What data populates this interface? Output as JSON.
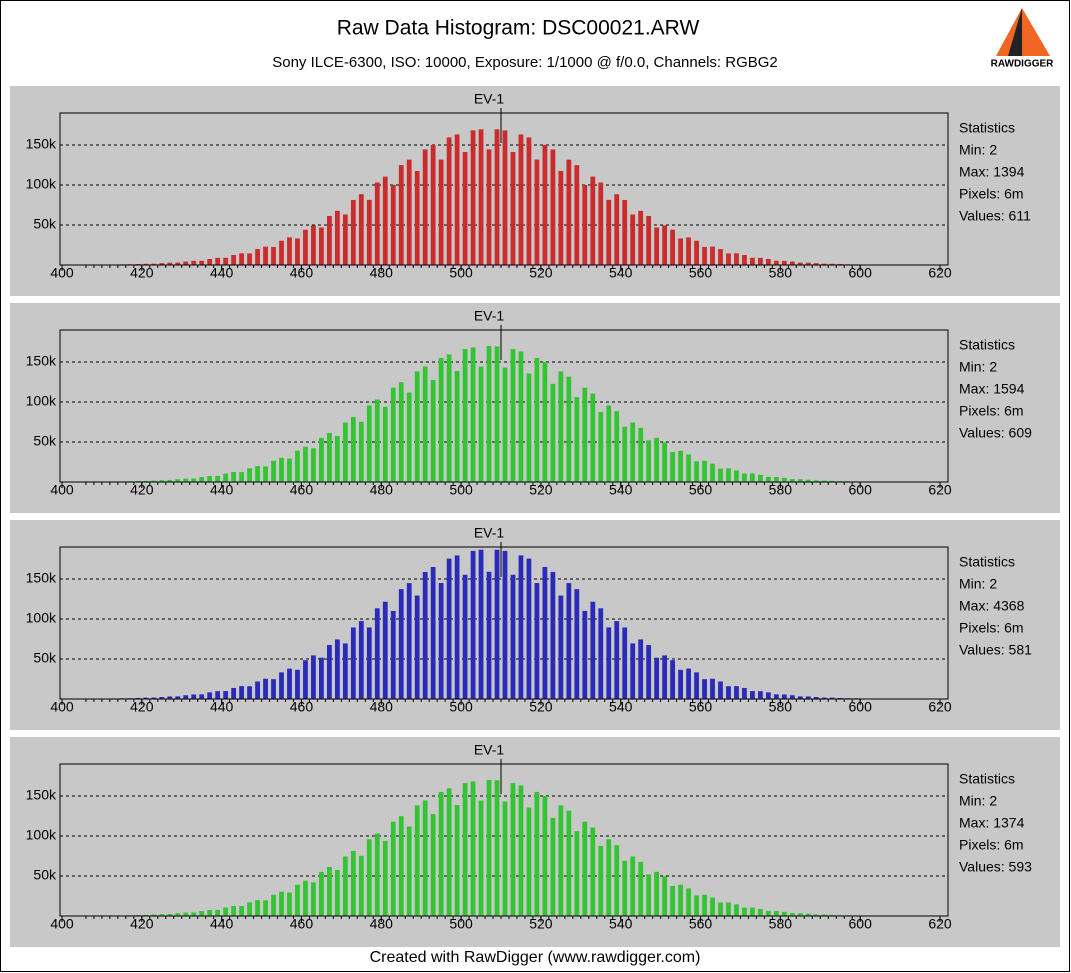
{
  "header": {
    "title": "Raw Data Histogram: DSC00021.ARW",
    "subtitle": "Sony ILCE-6300, ISO: 10000, Exposure: 1/1000 @ f/0.0, Channels: RGBG2",
    "logo": "RAWDIGGER"
  },
  "footer": "Created with RawDigger (www.rawdigger.com)",
  "chart_data": [
    {
      "type": "histogram",
      "color": "#cc2b2b",
      "marker": {
        "label": "EV-1",
        "value": 510
      },
      "statistics": [
        "Statistics",
        "Min: 2",
        "Max: 1394",
        "Pixels: 6m",
        "Values: 611"
      ],
      "xlim": [
        400,
        620
      ],
      "xticks": [
        400,
        420,
        440,
        460,
        480,
        500,
        520,
        540,
        560,
        580,
        600,
        620
      ],
      "ylim": [
        0,
        190000
      ],
      "yticks": [
        {
          "value": 50000,
          "label": "50k"
        },
        {
          "value": 100000,
          "label": "100k"
        },
        {
          "value": 150000,
          "label": "150k"
        }
      ],
      "grid": true,
      "bins": [
        406,
        408,
        410,
        412,
        414,
        416,
        418,
        420,
        422,
        424,
        426,
        428,
        430,
        432,
        434,
        436,
        438,
        440,
        442,
        444,
        446,
        448,
        450,
        452,
        454,
        456,
        458,
        460,
        462,
        464,
        466,
        468,
        470,
        472,
        474,
        476,
        478,
        480,
        482,
        484,
        486,
        488,
        490,
        492,
        494,
        496,
        498,
        500,
        502,
        504,
        506,
        508,
        510,
        512,
        514,
        516,
        518,
        520,
        522,
        524,
        526,
        528,
        530,
        532,
        534,
        536,
        538,
        540,
        542,
        544,
        546,
        548,
        550,
        552,
        554,
        556,
        558,
        560,
        562,
        564,
        566,
        568,
        570,
        572,
        574,
        576,
        578,
        580,
        582,
        584,
        586,
        588,
        590,
        592,
        594,
        596,
        598,
        600
      ],
      "values": [
        300,
        400,
        400,
        600,
        800,
        900,
        1200,
        1500,
        1600,
        2300,
        2900,
        3000,
        4300,
        5200,
        5300,
        7500,
        8900,
        9000,
        12500,
        14600,
        14500,
        19900,
        23000,
        22500,
        30300,
        34500,
        33200,
        44100,
        49500,
        46900,
        61300,
        67700,
        63200,
        81300,
        88500,
        81400,
        103100,
        110500,
        100100,
        124800,
        131700,
        117500,
        144400,
        150000,
        131800,
        159500,
        163200,
        141200,
        168300,
        169600,
        144500,
        169600,
        168300,
        141200,
        163200,
        159500,
        131800,
        150000,
        144400,
        117500,
        131700,
        124800,
        100100,
        110500,
        103100,
        81400,
        88500,
        81300,
        63200,
        67700,
        61300,
        46900,
        49500,
        44100,
        33200,
        34500,
        30300,
        22500,
        23000,
        19900,
        14500,
        14600,
        12500,
        9000,
        8900,
        7500,
        5300,
        5200,
        4300,
        3000,
        2900,
        2300,
        1600,
        1500,
        1200,
        900,
        800
      ]
    },
    {
      "type": "histogram",
      "color": "#33c433",
      "marker": {
        "label": "EV-1",
        "value": 510
      },
      "statistics": [
        "Statistics",
        "Min: 2",
        "Max: 1594",
        "Pixels: 6m",
        "Values: 609"
      ],
      "xlim": [
        400,
        620
      ],
      "xticks": [
        400,
        420,
        440,
        460,
        480,
        500,
        520,
        540,
        560,
        580,
        600,
        620
      ],
      "ylim": [
        0,
        190000
      ],
      "yticks": [
        {
          "value": 50000,
          "label": "50k"
        },
        {
          "value": 100000,
          "label": "100k"
        },
        {
          "value": 150000,
          "label": "150k"
        }
      ],
      "grid": true,
      "bins": [
        406,
        408,
        410,
        412,
        414,
        416,
        418,
        420,
        422,
        424,
        426,
        428,
        430,
        432,
        434,
        436,
        438,
        440,
        442,
        444,
        446,
        448,
        450,
        452,
        454,
        456,
        458,
        460,
        462,
        464,
        466,
        468,
        470,
        472,
        474,
        476,
        478,
        480,
        482,
        484,
        486,
        488,
        490,
        492,
        494,
        496,
        498,
        500,
        502,
        504,
        506,
        508,
        510,
        512,
        514,
        516,
        518,
        520,
        522,
        524,
        526,
        528,
        530,
        532,
        534,
        536,
        538,
        540,
        542,
        544,
        546,
        548,
        550,
        552,
        554,
        556,
        558,
        560,
        562,
        564,
        566,
        568,
        570,
        572,
        574,
        576,
        578,
        580,
        582,
        584,
        586,
        588,
        590,
        592,
        594,
        596,
        598,
        600
      ],
      "values": [
        300,
        300,
        500,
        600,
        700,
        1000,
        1200,
        1300,
        1900,
        2300,
        2500,
        3500,
        4300,
        4400,
        6200,
        7500,
        7600,
        10600,
        12500,
        12400,
        17100,
        19900,
        19600,
        26500,
        30300,
        29300,
        39100,
        44100,
        42100,
        55200,
        61300,
        57500,
        74400,
        81300,
        75200,
        95800,
        103100,
        93900,
        117800,
        124800,
        111900,
        138200,
        144400,
        127500,
        155100,
        159500,
        138700,
        166100,
        168300,
        144200,
        170000,
        169600,
        143100,
        166100,
        163200,
        135600,
        155100,
        150000,
        122700,
        138200,
        131700,
        106100,
        117800,
        110500,
        87600,
        95800,
        88500,
        69100,
        74400,
        67700,
        52100,
        55200,
        49500,
        37500,
        39100,
        34500,
        25800,
        26500,
        23000,
        16900,
        17100,
        14600,
        10600,
        10600,
        8900,
        6400,
        6200,
        5200,
        3700,
        3500,
        2900,
        2000,
        1900,
        1500,
        1000,
        1000,
        800
      ]
    },
    {
      "type": "histogram",
      "color": "#2b2bbb",
      "marker": {
        "label": "EV-1",
        "value": 510
      },
      "statistics": [
        "Statistics",
        "Min: 2",
        "Max: 4368",
        "Pixels: 6m",
        "Values: 581"
      ],
      "xlim": [
        400,
        620
      ],
      "xticks": [
        400,
        420,
        440,
        460,
        480,
        500,
        520,
        540,
        560,
        580,
        600,
        620
      ],
      "ylim": [
        0,
        190000
      ],
      "yticks": [
        {
          "value": 50000,
          "label": "50k"
        },
        {
          "value": 100000,
          "label": "100k"
        },
        {
          "value": 150000,
          "label": "150k"
        }
      ],
      "grid": true,
      "bins": [
        406,
        408,
        410,
        412,
        414,
        416,
        418,
        420,
        422,
        424,
        426,
        428,
        430,
        432,
        434,
        436,
        438,
        440,
        442,
        444,
        446,
        448,
        450,
        452,
        454,
        456,
        458,
        460,
        462,
        464,
        466,
        468,
        470,
        472,
        474,
        476,
        478,
        480,
        482,
        484,
        486,
        488,
        490,
        492,
        494,
        496,
        498,
        500,
        502,
        504,
        506,
        508,
        510,
        512,
        514,
        516,
        518,
        520,
        522,
        524,
        526,
        528,
        530,
        532,
        534,
        536,
        538,
        540,
        542,
        544,
        546,
        548,
        550,
        552,
        554,
        556,
        558,
        560,
        562,
        564,
        566,
        568,
        570,
        572,
        574,
        576,
        578,
        580,
        582,
        584,
        586,
        588,
        590,
        592,
        594,
        596,
        598,
        600
      ],
      "values": [
        300,
        400,
        400,
        700,
        900,
        1000,
        1300,
        1700,
        1800,
        2500,
        3200,
        3300,
        4700,
        5700,
        5800,
        8300,
        9800,
        9900,
        13800,
        16100,
        16000,
        21900,
        25300,
        24800,
        33300,
        38000,
        36500,
        48500,
        54500,
        51600,
        67400,
        74500,
        69500,
        89400,
        97400,
        89500,
        113400,
        121600,
        110100,
        137300,
        144900,
        129300,
        158800,
        165000,
        145000,
        175500,
        179500,
        155300,
        185100,
        186600,
        159000,
        186600,
        185100,
        155300,
        179500,
        175500,
        145000,
        165000,
        158800,
        129300,
        144900,
        137300,
        110100,
        121600,
        113400,
        89500,
        97400,
        89400,
        69500,
        74500,
        67400,
        51600,
        54500,
        48500,
        36500,
        38000,
        33300,
        24800,
        25300,
        21900,
        16000,
        16100,
        13800,
        9900,
        9800,
        8300,
        5800,
        5700,
        4700,
        3300,
        3200,
        2500,
        1800,
        1700,
        1300,
        1000,
        900
      ]
    },
    {
      "type": "histogram",
      "color": "#33c433",
      "marker": {
        "label": "EV-1",
        "value": 510
      },
      "statistics": [
        "Statistics",
        "Min: 2",
        "Max: 1374",
        "Pixels: 6m",
        "Values: 593"
      ],
      "xlim": [
        400,
        620
      ],
      "xticks": [
        400,
        420,
        440,
        460,
        480,
        500,
        520,
        540,
        560,
        580,
        600,
        620
      ],
      "ylim": [
        0,
        190000
      ],
      "yticks": [
        {
          "value": 50000,
          "label": "50k"
        },
        {
          "value": 100000,
          "label": "100k"
        },
        {
          "value": 150000,
          "label": "150k"
        }
      ],
      "grid": true,
      "bins": [
        406,
        408,
        410,
        412,
        414,
        416,
        418,
        420,
        422,
        424,
        426,
        428,
        430,
        432,
        434,
        436,
        438,
        440,
        442,
        444,
        446,
        448,
        450,
        452,
        454,
        456,
        458,
        460,
        462,
        464,
        466,
        468,
        470,
        472,
        474,
        476,
        478,
        480,
        482,
        484,
        486,
        488,
        490,
        492,
        494,
        496,
        498,
        500,
        502,
        504,
        506,
        508,
        510,
        512,
        514,
        516,
        518,
        520,
        522,
        524,
        526,
        528,
        530,
        532,
        534,
        536,
        538,
        540,
        542,
        544,
        546,
        548,
        550,
        552,
        554,
        556,
        558,
        560,
        562,
        564,
        566,
        568,
        570,
        572,
        574,
        576,
        578,
        580,
        582,
        584,
        586,
        588,
        590,
        592,
        594,
        596,
        598,
        600
      ],
      "values": [
        300,
        300,
        500,
        600,
        700,
        1000,
        1200,
        1300,
        1900,
        2300,
        2500,
        3500,
        4300,
        4400,
        6200,
        7500,
        7600,
        10600,
        12500,
        12400,
        17100,
        19900,
        19600,
        26500,
        30300,
        29300,
        39100,
        44100,
        42100,
        55200,
        61300,
        57500,
        74400,
        81300,
        75200,
        95800,
        103100,
        93900,
        117800,
        124800,
        111900,
        138200,
        144400,
        127500,
        155100,
        159500,
        138700,
        166100,
        168300,
        144200,
        170000,
        169600,
        143100,
        166100,
        163200,
        135600,
        155100,
        150000,
        122700,
        138200,
        131700,
        106100,
        117800,
        110500,
        87600,
        95800,
        88500,
        69100,
        74400,
        67700,
        52100,
        55200,
        49500,
        37500,
        39100,
        34500,
        25800,
        26500,
        23000,
        16900,
        17100,
        14600,
        10600,
        10600,
        8900,
        6400,
        6200,
        5200,
        3700,
        3500,
        2900,
        2000,
        1900,
        1500,
        1000,
        1000,
        800
      ]
    }
  ]
}
